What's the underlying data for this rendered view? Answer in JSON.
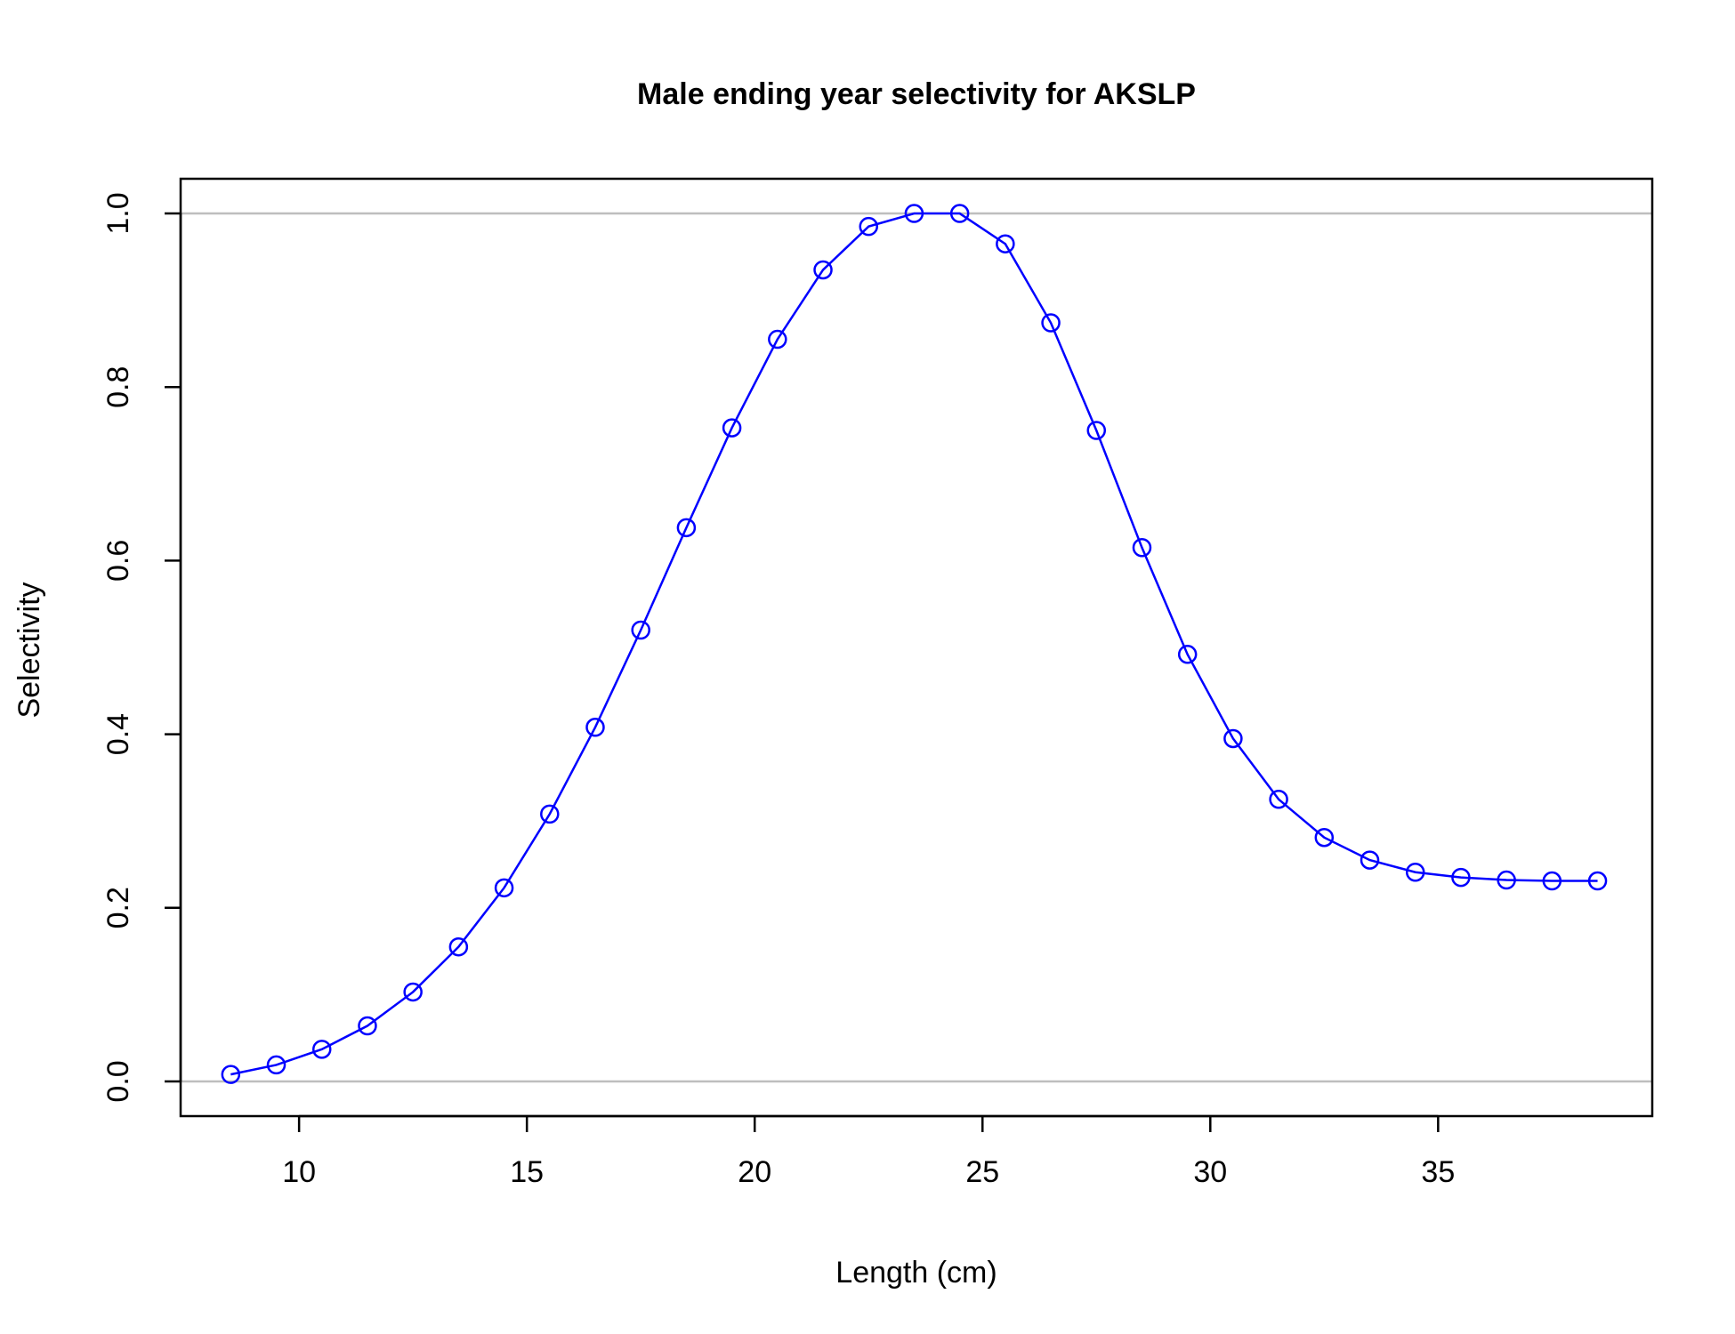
{
  "chart_data": {
    "type": "line",
    "title": "Male ending year selectivity for AKSLP",
    "xlabel": "Length (cm)",
    "ylabel": "Selectivity",
    "xlim": [
      7.4,
      39.7
    ],
    "ylim": [
      -0.04,
      1.04
    ],
    "x_ticks": [
      10,
      15,
      20,
      25,
      30,
      35
    ],
    "y_ticks": [
      0.0,
      0.2,
      0.4,
      0.6,
      0.8,
      1.0
    ],
    "x_tick_labels": [
      "10",
      "15",
      "20",
      "25",
      "30",
      "35"
    ],
    "y_tick_labels": [
      "0.0",
      "0.2",
      "0.4",
      "0.6",
      "0.8",
      "1.0"
    ],
    "reference_lines_y": [
      0,
      1
    ],
    "reference_line_color": "#bebebe",
    "grid": false,
    "legend": "none",
    "series": [
      {
        "color": "#0000ff",
        "marker": "open-circle",
        "x": [
          8.5,
          9.5,
          10.5,
          11.5,
          12.5,
          13.5,
          14.5,
          15.5,
          16.5,
          17.5,
          18.5,
          19.5,
          20.5,
          21.5,
          22.5,
          23.5,
          24.5,
          25.5,
          26.5,
          27.5,
          28.5,
          29.5,
          30.5,
          31.5,
          32.5,
          33.5,
          34.5,
          35.5,
          36.5,
          37.5,
          38.5
        ],
        "y": [
          0.008,
          0.019,
          0.037,
          0.064,
          0.103,
          0.155,
          0.223,
          0.308,
          0.408,
          0.52,
          0.638,
          0.753,
          0.855,
          0.935,
          0.985,
          1.0,
          1.0,
          0.965,
          0.874,
          0.75,
          0.615,
          0.492,
          0.395,
          0.325,
          0.281,
          0.255,
          0.241,
          0.235,
          0.232,
          0.231,
          0.231
        ]
      }
    ]
  }
}
